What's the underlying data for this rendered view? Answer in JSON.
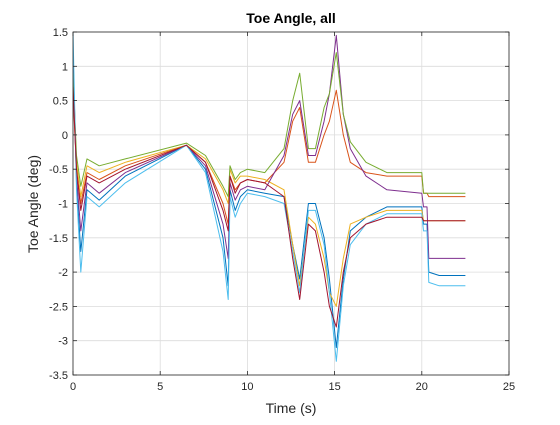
{
  "chart_data": {
    "type": "line",
    "title": "Toe Angle, all",
    "xlabel": "Time (s)",
    "ylabel": "Toe Angle (deg)",
    "xlim": [
      0,
      25
    ],
    "ylim": [
      -3.5,
      1.5
    ],
    "xticks": [
      0,
      5,
      10,
      15,
      20,
      25
    ],
    "yticks": [
      -3.5,
      -3,
      -2.5,
      -2,
      -1.5,
      -1,
      -0.5,
      0,
      0.5,
      1,
      1.5
    ],
    "grid": true,
    "legend": "none",
    "series": [
      {
        "color": "#0072BD",
        "values": [
          [
            0,
            1.2
          ],
          [
            0.2,
            -0.7
          ],
          [
            0.45,
            -1.7
          ],
          [
            0.8,
            -0.8
          ],
          [
            1.5,
            -0.95
          ],
          [
            3,
            -0.6
          ],
          [
            6.5,
            -0.15
          ],
          [
            7.6,
            -0.5
          ],
          [
            8.6,
            -1.5
          ],
          [
            8.9,
            -2.2
          ],
          [
            9,
            -0.8
          ],
          [
            9.3,
            -1.1
          ],
          [
            9.6,
            -0.9
          ],
          [
            10,
            -0.8
          ],
          [
            11,
            -0.85
          ],
          [
            12.1,
            -0.9
          ],
          [
            12.6,
            -1.6
          ],
          [
            13,
            -2.1
          ],
          [
            13.5,
            -1.0
          ],
          [
            13.9,
            -1.0
          ],
          [
            14.4,
            -1.5
          ],
          [
            14.7,
            -2.1
          ],
          [
            15.1,
            -3.1
          ],
          [
            15.5,
            -2.1
          ],
          [
            15.9,
            -1.4
          ],
          [
            16.8,
            -1.2
          ],
          [
            18,
            -1.05
          ],
          [
            20,
            -1.05
          ],
          [
            20.1,
            -1.3
          ],
          [
            20.3,
            -1.3
          ],
          [
            20.4,
            -2.0
          ],
          [
            21,
            -2.05
          ],
          [
            22.5,
            -2.05
          ]
        ]
      },
      {
        "color": "#D95319",
        "values": [
          [
            0,
            0.6
          ],
          [
            0.2,
            -0.5
          ],
          [
            0.45,
            -1.0
          ],
          [
            0.8,
            -0.55
          ],
          [
            1.5,
            -0.65
          ],
          [
            3,
            -0.45
          ],
          [
            6.5,
            -0.15
          ],
          [
            7.6,
            -0.4
          ],
          [
            8.6,
            -1.0
          ],
          [
            8.9,
            -1.3
          ],
          [
            9,
            -0.6
          ],
          [
            9.3,
            -0.8
          ],
          [
            9.6,
            -0.7
          ],
          [
            10,
            -0.65
          ],
          [
            11,
            -0.7
          ],
          [
            12.1,
            -0.4
          ],
          [
            12.6,
            0.2
          ],
          [
            13,
            0.4
          ],
          [
            13.5,
            -0.4
          ],
          [
            13.9,
            -0.4
          ],
          [
            14.4,
            0.0
          ],
          [
            14.7,
            0.2
          ],
          [
            15.1,
            0.65
          ],
          [
            15.5,
            0.0
          ],
          [
            15.9,
            -0.4
          ],
          [
            16.8,
            -0.55
          ],
          [
            18,
            -0.6
          ],
          [
            20,
            -0.6
          ],
          [
            20.1,
            -0.85
          ],
          [
            20.3,
            -0.85
          ],
          [
            20.4,
            -0.9
          ],
          [
            21,
            -0.9
          ],
          [
            22.5,
            -0.9
          ]
        ]
      },
      {
        "color": "#EDB120",
        "values": [
          [
            0,
            0.8
          ],
          [
            0.2,
            -0.4
          ],
          [
            0.45,
            -0.9
          ],
          [
            0.8,
            -0.45
          ],
          [
            1.5,
            -0.55
          ],
          [
            3,
            -0.4
          ],
          [
            6.5,
            -0.15
          ],
          [
            7.6,
            -0.35
          ],
          [
            8.6,
            -0.8
          ],
          [
            8.9,
            -1.0
          ],
          [
            9,
            -0.5
          ],
          [
            9.3,
            -0.7
          ],
          [
            9.6,
            -0.6
          ],
          [
            10,
            -0.6
          ],
          [
            11,
            -0.65
          ],
          [
            12.1,
            -0.8
          ],
          [
            12.6,
            -1.6
          ],
          [
            13,
            -2.2
          ],
          [
            13.5,
            -1.2
          ],
          [
            13.9,
            -1.3
          ],
          [
            14.4,
            -1.8
          ],
          [
            14.7,
            -2.3
          ],
          [
            15.1,
            -2.5
          ],
          [
            15.5,
            -1.8
          ],
          [
            15.9,
            -1.3
          ],
          [
            16.8,
            -1.2
          ],
          [
            18,
            -1.1
          ],
          [
            20,
            -1.1
          ],
          [
            20.1,
            -1.25
          ],
          [
            20.3,
            -1.25
          ],
          [
            20.4,
            -1.25
          ],
          [
            21,
            -1.25
          ],
          [
            22.5,
            -1.25
          ]
        ]
      },
      {
        "color": "#7E2F8E",
        "values": [
          [
            0,
            1.0
          ],
          [
            0.2,
            -0.6
          ],
          [
            0.45,
            -1.4
          ],
          [
            0.8,
            -0.7
          ],
          [
            1.5,
            -0.85
          ],
          [
            3,
            -0.55
          ],
          [
            6.5,
            -0.15
          ],
          [
            7.6,
            -0.45
          ],
          [
            8.6,
            -1.3
          ],
          [
            8.9,
            -1.8
          ],
          [
            9,
            -0.7
          ],
          [
            9.3,
            -0.95
          ],
          [
            9.6,
            -0.8
          ],
          [
            10,
            -0.75
          ],
          [
            11,
            -0.8
          ],
          [
            12.1,
            -0.3
          ],
          [
            12.6,
            0.3
          ],
          [
            13,
            0.5
          ],
          [
            13.5,
            -0.3
          ],
          [
            13.9,
            -0.3
          ],
          [
            14.4,
            0.2
          ],
          [
            14.7,
            0.6
          ],
          [
            15.1,
            1.45
          ],
          [
            15.5,
            0.3
          ],
          [
            15.9,
            -0.2
          ],
          [
            16.8,
            -0.6
          ],
          [
            18,
            -0.8
          ],
          [
            20,
            -0.85
          ],
          [
            20.1,
            -1.05
          ],
          [
            20.3,
            -1.05
          ],
          [
            20.4,
            -1.8
          ],
          [
            21,
            -1.8
          ],
          [
            22.5,
            -1.8
          ]
        ]
      },
      {
        "color": "#77AC30",
        "values": [
          [
            0,
            0.9
          ],
          [
            0.2,
            -0.3
          ],
          [
            0.45,
            -0.75
          ],
          [
            0.8,
            -0.35
          ],
          [
            1.5,
            -0.45
          ],
          [
            3,
            -0.35
          ],
          [
            6.5,
            -0.12
          ],
          [
            7.6,
            -0.3
          ],
          [
            8.6,
            -0.75
          ],
          [
            8.9,
            -0.9
          ],
          [
            9,
            -0.45
          ],
          [
            9.3,
            -0.65
          ],
          [
            9.6,
            -0.55
          ],
          [
            10,
            -0.5
          ],
          [
            11,
            -0.55
          ],
          [
            12.1,
            -0.2
          ],
          [
            12.6,
            0.5
          ],
          [
            13,
            0.9
          ],
          [
            13.5,
            -0.2
          ],
          [
            13.9,
            -0.2
          ],
          [
            14.4,
            0.4
          ],
          [
            14.7,
            0.6
          ],
          [
            15.1,
            1.2
          ],
          [
            15.5,
            0.3
          ],
          [
            15.9,
            -0.1
          ],
          [
            16.8,
            -0.4
          ],
          [
            18,
            -0.55
          ],
          [
            20,
            -0.55
          ],
          [
            20.1,
            -0.85
          ],
          [
            20.3,
            -0.85
          ],
          [
            20.4,
            -0.85
          ],
          [
            21,
            -0.85
          ],
          [
            22.5,
            -0.85
          ]
        ]
      },
      {
        "color": "#4DBEEE",
        "values": [
          [
            0,
            1.5
          ],
          [
            0.2,
            -0.8
          ],
          [
            0.45,
            -2.0
          ],
          [
            0.8,
            -0.9
          ],
          [
            1.5,
            -1.05
          ],
          [
            3,
            -0.7
          ],
          [
            6.5,
            -0.15
          ],
          [
            7.6,
            -0.55
          ],
          [
            8.6,
            -1.7
          ],
          [
            8.9,
            -2.4
          ],
          [
            9,
            -0.9
          ],
          [
            9.3,
            -1.2
          ],
          [
            9.6,
            -1.0
          ],
          [
            10,
            -0.85
          ],
          [
            11,
            -0.9
          ],
          [
            12.1,
            -1.0
          ],
          [
            12.6,
            -1.7
          ],
          [
            13,
            -2.3
          ],
          [
            13.5,
            -1.1
          ],
          [
            13.9,
            -1.1
          ],
          [
            14.4,
            -1.6
          ],
          [
            14.7,
            -2.3
          ],
          [
            15.1,
            -3.3
          ],
          [
            15.5,
            -2.2
          ],
          [
            15.9,
            -1.6
          ],
          [
            16.8,
            -1.3
          ],
          [
            18,
            -1.15
          ],
          [
            20,
            -1.15
          ],
          [
            20.1,
            -1.4
          ],
          [
            20.3,
            -1.4
          ],
          [
            20.4,
            -2.15
          ],
          [
            21,
            -2.2
          ],
          [
            22.5,
            -2.2
          ]
        ]
      },
      {
        "color": "#A2142F",
        "values": [
          [
            0,
            0.7
          ],
          [
            0.2,
            -0.5
          ],
          [
            0.45,
            -1.1
          ],
          [
            0.8,
            -0.6
          ],
          [
            1.5,
            -0.7
          ],
          [
            3,
            -0.5
          ],
          [
            6.5,
            -0.15
          ],
          [
            7.6,
            -0.4
          ],
          [
            8.6,
            -1.1
          ],
          [
            8.9,
            -1.4
          ],
          [
            9,
            -0.6
          ],
          [
            9.3,
            -0.85
          ],
          [
            9.6,
            -0.7
          ],
          [
            10,
            -0.65
          ],
          [
            11,
            -0.7
          ],
          [
            12.1,
            -0.9
          ],
          [
            12.6,
            -1.8
          ],
          [
            13,
            -2.4
          ],
          [
            13.5,
            -1.3
          ],
          [
            13.9,
            -1.4
          ],
          [
            14.4,
            -2.0
          ],
          [
            14.7,
            -2.5
          ],
          [
            15.1,
            -2.8
          ],
          [
            15.5,
            -2.0
          ],
          [
            15.9,
            -1.5
          ],
          [
            16.8,
            -1.3
          ],
          [
            18,
            -1.2
          ],
          [
            20,
            -1.2
          ],
          [
            20.1,
            -1.25
          ],
          [
            20.3,
            -1.25
          ],
          [
            20.4,
            -1.25
          ],
          [
            21,
            -1.25
          ],
          [
            22.5,
            -1.25
          ]
        ]
      }
    ]
  }
}
